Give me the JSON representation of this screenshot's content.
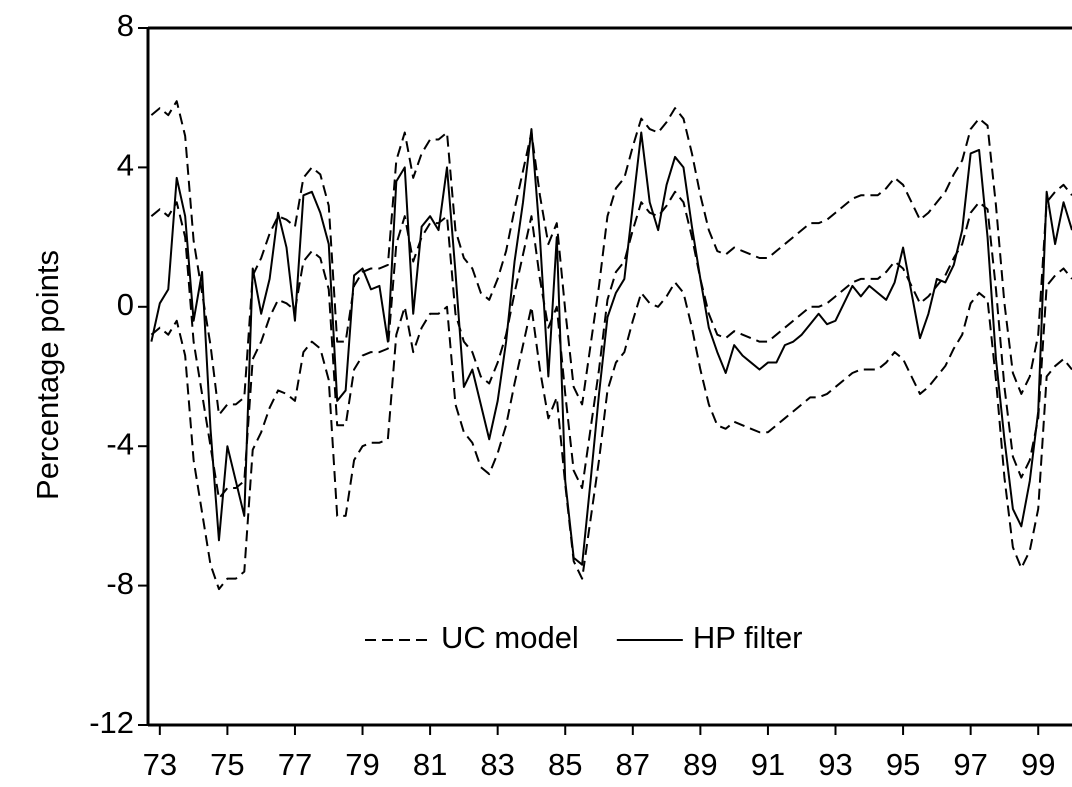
{
  "chart_data": {
    "type": "line",
    "y_label": "Percentage points",
    "x": [
      1972.75,
      1973,
      1973.25,
      1973.5,
      1973.75,
      1974,
      1974.25,
      1974.5,
      1974.75,
      1975,
      1975.25,
      1975.5,
      1975.75,
      1976,
      1976.25,
      1976.5,
      1976.75,
      1977,
      1977.25,
      1977.5,
      1977.75,
      1978,
      1978.25,
      1978.5,
      1978.75,
      1979,
      1979.25,
      1979.5,
      1979.75,
      1980,
      1980.25,
      1980.5,
      1980.75,
      1981,
      1981.25,
      1981.5,
      1981.75,
      1982,
      1982.25,
      1982.5,
      1982.75,
      1983,
      1983.25,
      1983.5,
      1983.75,
      1984,
      1984.25,
      1984.5,
      1984.75,
      1985,
      1985.25,
      1985.5,
      1985.75,
      1986,
      1986.25,
      1986.5,
      1986.75,
      1987,
      1987.25,
      1987.5,
      1987.75,
      1988,
      1988.25,
      1988.5,
      1988.75,
      1989,
      1989.25,
      1989.5,
      1989.75,
      1990,
      1990.25,
      1990.5,
      1990.75,
      1991,
      1991.25,
      1991.5,
      1991.75,
      1992,
      1992.25,
      1992.5,
      1992.75,
      1993,
      1993.25,
      1993.5,
      1993.75,
      1994,
      1994.25,
      1994.5,
      1994.75,
      1995,
      1995.25,
      1995.5,
      1995.75,
      1996,
      1996.25,
      1996.5,
      1996.75,
      1997,
      1997.25,
      1997.5,
      1997.75,
      1998,
      1998.25,
      1998.5,
      1998.75,
      1999,
      1999.25,
      1999.5,
      1999.75,
      2000
    ],
    "series": [
      {
        "name": "UC model",
        "color": "#000000",
        "dash": "dashed",
        "values": [
          2.6,
          2.8,
          2.6,
          3.0,
          2.0,
          -1.0,
          -2.5,
          -4.0,
          -5.5,
          -5.2,
          -5.2,
          -5.0,
          -1.5,
          -1.0,
          -0.3,
          0.2,
          0.1,
          -0.1,
          1.3,
          1.6,
          1.4,
          0.5,
          -3.4,
          -3.4,
          -1.8,
          -1.4,
          -1.3,
          -1.3,
          -1.2,
          1.8,
          2.6,
          1.3,
          2.0,
          2.4,
          2.4,
          2.6,
          -0.2,
          -1.0,
          -1.3,
          -2.0,
          -2.2,
          -1.6,
          -0.8,
          0.4,
          1.5,
          2.6,
          0.8,
          -0.6,
          0.0,
          -2.5,
          -4.7,
          -5.2,
          -3.5,
          -1.8,
          0.2,
          1.0,
          1.3,
          2.2,
          3.0,
          2.7,
          2.6,
          2.9,
          3.3,
          3.0,
          2.0,
          0.8,
          -0.2,
          -0.8,
          -0.9,
          -0.7,
          -0.8,
          -0.9,
          -1.0,
          -1.0,
          -0.8,
          -0.6,
          -0.4,
          -0.2,
          0.0,
          0.0,
          0.1,
          0.3,
          0.5,
          0.7,
          0.8,
          0.8,
          0.8,
          1.0,
          1.3,
          1.1,
          0.6,
          0.1,
          0.3,
          0.6,
          0.9,
          1.4,
          1.8,
          2.7,
          3.0,
          2.8,
          0.5,
          -2.3,
          -4.3,
          -4.9,
          -4.4,
          -3.2,
          0.6,
          0.9,
          1.1,
          0.8
        ],
        "upper": [
          5.5,
          5.7,
          5.5,
          5.9,
          4.9,
          1.9,
          0.4,
          -1.1,
          -3.1,
          -2.8,
          -2.8,
          -2.6,
          0.9,
          1.4,
          2.1,
          2.6,
          2.5,
          2.3,
          3.7,
          4.0,
          3.8,
          2.9,
          -1.0,
          -1.0,
          0.6,
          1.0,
          1.1,
          1.1,
          1.2,
          4.2,
          5.0,
          3.7,
          4.4,
          4.8,
          4.8,
          5.0,
          2.2,
          1.4,
          1.1,
          0.4,
          0.2,
          0.8,
          1.6,
          2.8,
          3.9,
          5.0,
          3.2,
          1.8,
          2.4,
          -0.1,
          -2.3,
          -2.8,
          -1.1,
          0.6,
          2.6,
          3.4,
          3.7,
          4.6,
          5.4,
          5.1,
          5.0,
          5.3,
          5.7,
          5.4,
          4.4,
          3.2,
          2.2,
          1.6,
          1.5,
          1.7,
          1.6,
          1.5,
          1.4,
          1.4,
          1.6,
          1.8,
          2.0,
          2.2,
          2.4,
          2.4,
          2.5,
          2.7,
          2.9,
          3.1,
          3.2,
          3.2,
          3.2,
          3.4,
          3.7,
          3.5,
          3.0,
          2.5,
          2.7,
          3.0,
          3.3,
          3.8,
          4.2,
          5.1,
          5.4,
          5.2,
          2.9,
          0.1,
          -1.9,
          -2.5,
          -2.0,
          -0.8,
          3.0,
          3.3,
          3.5,
          3.2
        ],
        "lower": [
          -0.8,
          -0.6,
          -0.8,
          -0.4,
          -1.4,
          -4.4,
          -5.9,
          -7.4,
          -8.1,
          -7.8,
          -7.8,
          -7.6,
          -4.1,
          -3.6,
          -2.9,
          -2.4,
          -2.5,
          -2.7,
          -1.3,
          -1.0,
          -1.2,
          -2.1,
          -6.0,
          -6.0,
          -4.4,
          -4.0,
          -3.9,
          -3.9,
          -3.8,
          -0.8,
          0.0,
          -1.3,
          -0.6,
          -0.2,
          -0.2,
          0.0,
          -2.8,
          -3.6,
          -3.9,
          -4.6,
          -4.8,
          -4.2,
          -3.4,
          -2.2,
          -1.1,
          0.0,
          -1.8,
          -3.2,
          -2.6,
          -5.1,
          -7.3,
          -7.8,
          -6.1,
          -4.4,
          -2.4,
          -1.6,
          -1.3,
          -0.4,
          0.4,
          0.1,
          0.0,
          0.3,
          0.7,
          0.4,
          -0.6,
          -1.8,
          -2.8,
          -3.4,
          -3.5,
          -3.3,
          -3.4,
          -3.5,
          -3.6,
          -3.6,
          -3.4,
          -3.2,
          -3.0,
          -2.8,
          -2.6,
          -2.6,
          -2.5,
          -2.3,
          -2.1,
          -1.9,
          -1.8,
          -1.8,
          -1.8,
          -1.6,
          -1.3,
          -1.5,
          -2.0,
          -2.5,
          -2.3,
          -2.0,
          -1.7,
          -1.2,
          -0.8,
          0.1,
          0.4,
          0.2,
          -2.1,
          -4.9,
          -6.9,
          -7.5,
          -7.0,
          -5.8,
          -2.0,
          -1.7,
          -1.5,
          -1.8
        ]
      },
      {
        "name": "HP filter",
        "color": "#000000",
        "dash": "solid",
        "values": [
          -1.0,
          0.1,
          0.5,
          3.7,
          2.6,
          -0.4,
          1.0,
          -3.5,
          -6.7,
          -4.0,
          -5.0,
          -6.0,
          1.1,
          -0.2,
          0.8,
          2.7,
          1.7,
          -0.4,
          3.2,
          3.3,
          2.7,
          1.8,
          -2.7,
          -2.4,
          0.9,
          1.1,
          0.5,
          0.6,
          -1.0,
          3.6,
          4.0,
          -0.2,
          2.3,
          2.6,
          2.2,
          4.0,
          1.0,
          -2.3,
          -1.8,
          -2.8,
          -3.8,
          -2.7,
          -1.0,
          1.3,
          3.0,
          5.1,
          2.0,
          -2.0,
          2.0,
          -5.0,
          -7.2,
          -7.4,
          -5.0,
          -2.5,
          -0.3,
          0.4,
          0.8,
          2.9,
          5.0,
          3.0,
          2.2,
          3.5,
          4.3,
          4.0,
          2.3,
          0.8,
          -0.6,
          -1.3,
          -1.9,
          -1.1,
          -1.4,
          -1.6,
          -1.8,
          -1.6,
          -1.6,
          -1.1,
          -1.0,
          -0.8,
          -0.5,
          -0.2,
          -0.5,
          -0.4,
          0.1,
          0.6,
          0.3,
          0.6,
          0.4,
          0.2,
          0.7,
          1.7,
          0.4,
          -0.9,
          -0.2,
          0.8,
          0.7,
          1.2,
          2.2,
          4.4,
          4.5,
          2.0,
          -1.5,
          -3.8,
          -5.8,
          -6.3,
          -5.0,
          -3.0,
          3.3,
          1.8,
          3.0,
          2.2
        ]
      }
    ],
    "xlim": [
      1972.65,
      2000
    ],
    "xticks": [
      {
        "value": 1973,
        "label": "73"
      },
      {
        "value": 1975,
        "label": "75"
      },
      {
        "value": 1977,
        "label": "77"
      },
      {
        "value": 1979,
        "label": "79"
      },
      {
        "value": 1981,
        "label": "81"
      },
      {
        "value": 1983,
        "label": "83"
      },
      {
        "value": 1985,
        "label": "85"
      },
      {
        "value": 1987,
        "label": "87"
      },
      {
        "value": 1989,
        "label": "89"
      },
      {
        "value": 1991,
        "label": "91"
      },
      {
        "value": 1993,
        "label": "93"
      },
      {
        "value": 1995,
        "label": "95"
      },
      {
        "value": 1997,
        "label": "97"
      },
      {
        "value": 1999,
        "label": "99"
      }
    ],
    "ylim": [
      -12,
      8
    ],
    "yticks": [
      -12,
      -8,
      -4,
      0,
      4,
      8
    ],
    "legend": "bottom"
  }
}
